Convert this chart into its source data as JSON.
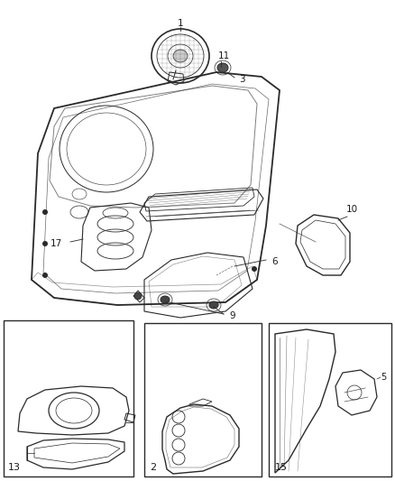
{
  "bg": "#ffffff",
  "lc": "#2a2a2a",
  "lc_light": "#888888",
  "tc": "#1a1a1a",
  "fig_w": 4.38,
  "fig_h": 5.33,
  "dpi": 100
}
